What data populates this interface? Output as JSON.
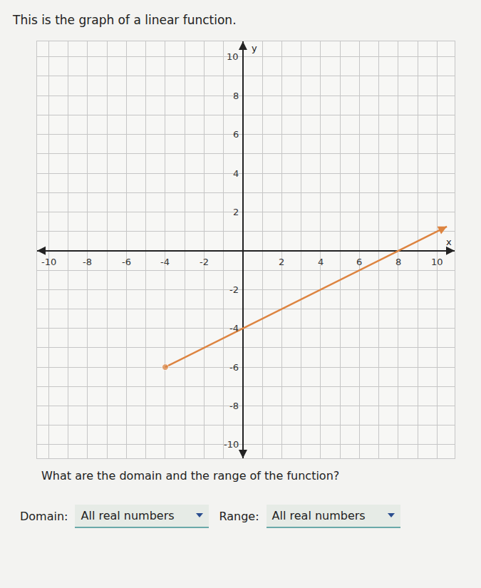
{
  "header": "This is the graph of a linear function.",
  "chart_data": {
    "type": "line",
    "x": [
      -4,
      10.5
    ],
    "values": [
      -6,
      1.25
    ],
    "color": "#dd8440",
    "marker": "circle",
    "line_style": "solid",
    "xlabel": "x",
    "ylabel": "y",
    "xlim": [
      -10.6,
      10.9
    ],
    "ylim": [
      -10.7,
      10.8
    ],
    "xticks": [
      -10,
      -8,
      -6,
      -4,
      -2,
      2,
      4,
      6,
      8,
      10
    ],
    "yticks": [
      -10,
      -8,
      -6,
      -4,
      -2,
      2,
      4,
      6,
      8,
      10
    ],
    "grid": true
  },
  "question": "What are the domain and the range of the function?",
  "answers": [
    {
      "label": "Domain:",
      "value": "All real numbers"
    },
    {
      "label": "Range:",
      "value": "All real numbers"
    }
  ]
}
